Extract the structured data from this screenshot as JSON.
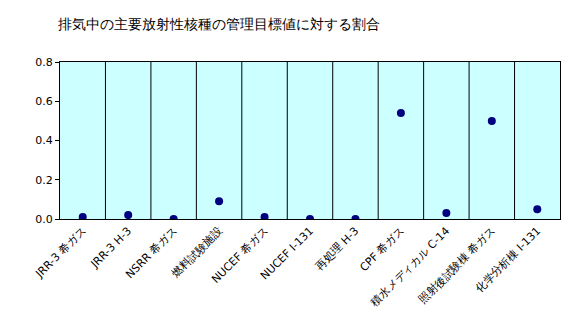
{
  "chart_data": {
    "type": "scatter",
    "title": "排気中の主要放射性核種の管理目標値に対する割合",
    "categories": [
      "JRR-3 希ガス",
      "JRR-3 H-3",
      "NSRR 希ガス",
      "燃料試験施設",
      "NUCEF 希ガス",
      "NUCEF I-131",
      "再処理 H-3",
      "CPF 希ガス",
      "積水メディカル C-14",
      "照射後試験棟 希ガス",
      "化学分析棟 I-131"
    ],
    "values": [
      0.01,
      0.02,
      0.0,
      0.09,
      0.01,
      0.0,
      0.0,
      0.54,
      0.03,
      0.5,
      0.05
    ],
    "color": "#000080",
    "marker": "circle",
    "ylim": [
      0,
      0.8
    ],
    "yticks": [
      {
        "value": 0,
        "label": "0.0"
      },
      0.2,
      0.4,
      0.6,
      0.8
    ],
    "grid": true
  }
}
